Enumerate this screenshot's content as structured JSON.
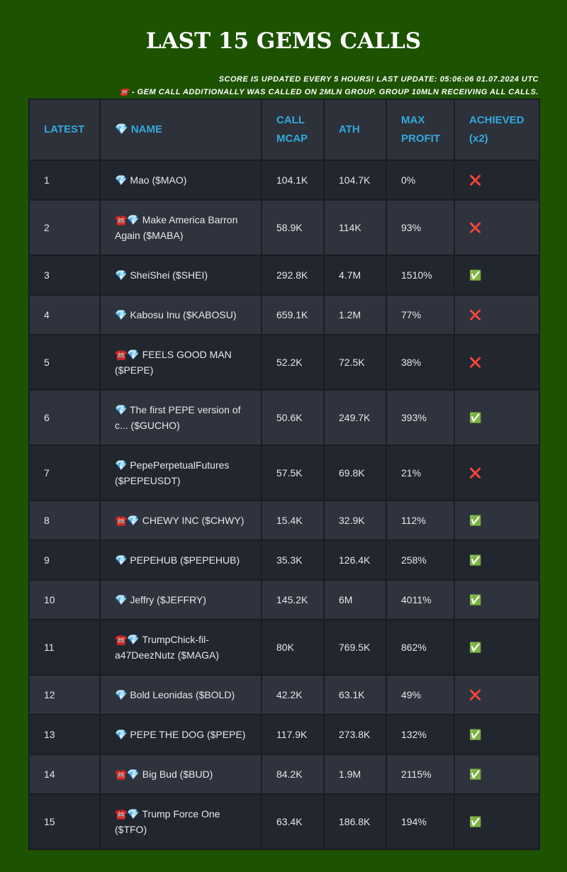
{
  "header": {
    "title": "LAST 15 GEMS CALLS",
    "notes": [
      "SCORE IS UPDATED EVERY 5 HOURS! LAST UPDATE: 05:06:06 01.07.2024 UTC",
      "☎️ - GEM CALL ADDITIONALLY WAS CALLED ON 2MLN GROUP. GROUP 10MLN RECEIVING ALL CALLS."
    ]
  },
  "table": {
    "columns": [
      "LATEST",
      "💎 NAME",
      "CALL MCAP",
      "ATH",
      "MAX PROFIT",
      "ACHIEVED (x2)"
    ],
    "rows": [
      [
        "1",
        "💎 Mao ($MAO)",
        "104.1K",
        "104.7K",
        "0%",
        "❌"
      ],
      [
        "2",
        "☎️💎 Make America Barron Again ($MABA)",
        "58.9K",
        "114K",
        "93%",
        "❌"
      ],
      [
        "3",
        "💎 SheiShei ($SHEI)",
        "292.8K",
        "4.7M",
        "1510%",
        "✅"
      ],
      [
        "4",
        "💎 Kabosu Inu ($KABOSU)",
        "659.1K",
        "1.2M",
        "77%",
        "❌"
      ],
      [
        "5",
        "☎️💎 FEELS GOOD MAN ($PEPE)",
        "52.2K",
        "72.5K",
        "38%",
        "❌"
      ],
      [
        "6",
        "💎 The first PEPE version of c... ($GUCHO)",
        "50.6K",
        "249.7K",
        "393%",
        "✅"
      ],
      [
        "7",
        "💎 PepePerpetualFutures ($PEPEUSDT)",
        "57.5K",
        "69.8K",
        "21%",
        "❌"
      ],
      [
        "8",
        "☎️💎 CHEWY INC ($CHWY)",
        "15.4K",
        "32.9K",
        "112%",
        "✅"
      ],
      [
        "9",
        "💎 PEPEHUB ($PEPEHUB)",
        "35.3K",
        "126.4K",
        "258%",
        "✅"
      ],
      [
        "10",
        "💎 Jeffry ($JEFFRY)",
        "145.2K",
        "6M",
        "4011%",
        "✅"
      ],
      [
        "11",
        "☎️💎 TrumpChick-fil-a47DeezNutz ($MAGA)",
        "80K",
        "769.5K",
        "862%",
        "✅"
      ],
      [
        "12",
        "💎 Bold Leonidas ($BOLD)",
        "42.2K",
        "63.1K",
        "49%",
        "❌"
      ],
      [
        "13",
        "💎 PEPE THE DOG ($PEPE)",
        "117.9K",
        "273.8K",
        "132%",
        "✅"
      ],
      [
        "14",
        "☎️💎 Big Bud ($BUD)",
        "84.2K",
        "1.9M",
        "2115%",
        "✅"
      ],
      [
        "15",
        "☎️💎 Trump Force One ($TFO)",
        "63.4K",
        "186.8K",
        "194%",
        "✅"
      ]
    ]
  }
}
